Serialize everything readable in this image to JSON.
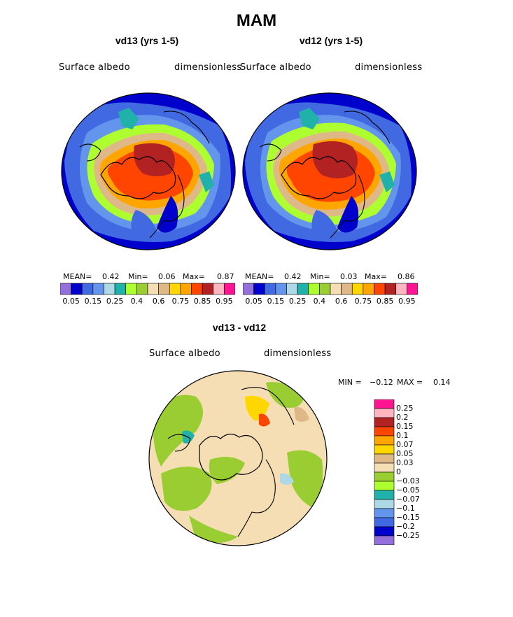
{
  "figure": {
    "title": "MAM"
  },
  "chart_data": [
    {
      "type": "heatmap",
      "title": "vd13 (yrs 1-5)",
      "variable": "Surface albedo",
      "units": "dimensionless",
      "projection": "polar stereographic (north)",
      "stats": {
        "mean_label": "MEAN=",
        "mean": "0.42",
        "min_label": "Min=",
        "min": "0.06",
        "max_label": "Max=",
        "max": "0.87"
      },
      "colorbar": {
        "colors": [
          "#9370db",
          "#0000cd",
          "#4169e1",
          "#6495ed",
          "#add8e6",
          "#20b2aa",
          "#adff2f",
          "#9acd32",
          "#f5deb3",
          "#deb887",
          "#ffd700",
          "#ffa500",
          "#ff4500",
          "#b22222",
          "#ffb6c1",
          "#ff1493"
        ],
        "tick_labels": [
          "0.05",
          "0.15",
          "0.25",
          "0.4",
          "0.6",
          "0.75",
          "0.85",
          "0.95"
        ]
      }
    },
    {
      "type": "heatmap",
      "title": "vd12 (yrs 1-5)",
      "variable": "Surface albedo",
      "units": "dimensionless",
      "projection": "polar stereographic (north)",
      "stats": {
        "mean_label": "MEAN=",
        "mean": "0.42",
        "min_label": "Min=",
        "min": "0.03",
        "max_label": "Max=",
        "max": "0.86"
      },
      "colorbar": {
        "colors": [
          "#9370db",
          "#0000cd",
          "#4169e1",
          "#6495ed",
          "#add8e6",
          "#20b2aa",
          "#adff2f",
          "#9acd32",
          "#f5deb3",
          "#deb887",
          "#ffd700",
          "#ffa500",
          "#ff4500",
          "#b22222",
          "#ffb6c1",
          "#ff1493"
        ],
        "tick_labels": [
          "0.05",
          "0.15",
          "0.25",
          "0.4",
          "0.6",
          "0.75",
          "0.85",
          "0.95"
        ]
      }
    },
    {
      "type": "heatmap",
      "title": "vd13 - vd12",
      "variable": "Surface albedo",
      "units": "dimensionless",
      "projection": "polar stereographic (north)",
      "stats": {
        "min_label": "MIN =",
        "min": "−0.12",
        "max_label": "MAX =",
        "max": "0.14"
      },
      "colorbar": {
        "orientation": "vertical",
        "levels": [
          "0.25",
          "0.2",
          "0.15",
          "0.1",
          "0.07",
          "0.05",
          "0.03",
          "0",
          "−0.03",
          "−0.05",
          "−0.07",
          "−0.1",
          "−0.15",
          "−0.2",
          "−0.25"
        ],
        "colors": [
          "#ff1493",
          "#ffb6c1",
          "#b22222",
          "#ff4500",
          "#ffa500",
          "#ffd700",
          "#deb887",
          "#f5deb3",
          "#9acd32",
          "#adff2f",
          "#20b2aa",
          "#add8e6",
          "#6495ed",
          "#4169e1",
          "#0000cd",
          "#9370db"
        ]
      }
    }
  ]
}
